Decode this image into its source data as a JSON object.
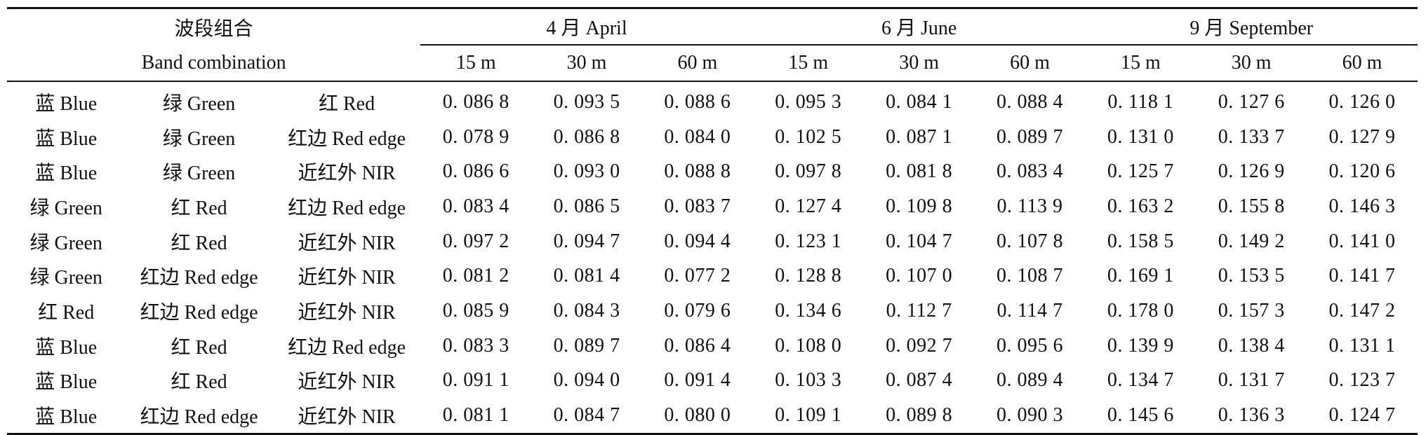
{
  "header": {
    "band_combination_cn": "波段组合",
    "band_combination_en": "Band combination",
    "months": [
      "4 月 April",
      "6 月 June",
      "9 月 September"
    ],
    "resolutions": [
      "15 m",
      "30 m",
      "60 m",
      "15 m",
      "30 m",
      "60 m",
      "15 m",
      "30 m",
      "60 m"
    ]
  },
  "rows": [
    {
      "bands": [
        "蓝 Blue",
        "绿 Green",
        "红 Red"
      ],
      "values": [
        "0. 086 8",
        "0. 093 5",
        "0. 088 6",
        "0. 095 3",
        "0. 084 1",
        "0. 088 4",
        "0. 118 1",
        "0. 127 6",
        "0. 126 0"
      ]
    },
    {
      "bands": [
        "蓝 Blue",
        "绿 Green",
        "红边 Red edge"
      ],
      "values": [
        "0. 078 9",
        "0. 086 8",
        "0. 084 0",
        "0. 102 5",
        "0. 087 1",
        "0. 089 7",
        "0. 131 0",
        "0. 133 7",
        "0. 127 9"
      ]
    },
    {
      "bands": [
        "蓝 Blue",
        "绿 Green",
        "近红外 NIR"
      ],
      "values": [
        "0. 086 6",
        "0. 093 0",
        "0. 088 8",
        "0. 097 8",
        "0. 081 8",
        "0. 083 4",
        "0. 125 7",
        "0. 126 9",
        "0. 120 6"
      ]
    },
    {
      "bands": [
        "绿 Green",
        "红 Red",
        "红边 Red edge"
      ],
      "values": [
        "0. 083 4",
        "0. 086 5",
        "0. 083 7",
        "0. 127 4",
        "0. 109 8",
        "0. 113 9",
        "0. 163 2",
        "0. 155 8",
        "0. 146 3"
      ]
    },
    {
      "bands": [
        "绿 Green",
        "红 Red",
        "近红外 NIR"
      ],
      "values": [
        "0. 097 2",
        "0. 094 7",
        "0. 094 4",
        "0. 123 1",
        "0. 104 7",
        "0. 107 8",
        "0. 158 5",
        "0. 149 2",
        "0. 141 0"
      ]
    },
    {
      "bands": [
        "绿 Green",
        "红边 Red edge",
        "近红外 NIR"
      ],
      "values": [
        "0. 081 2",
        "0. 081 4",
        "0. 077 2",
        "0. 128 8",
        "0. 107 0",
        "0. 108 7",
        "0. 169 1",
        "0. 153 5",
        "0. 141 7"
      ]
    },
    {
      "bands": [
        "红 Red",
        "红边 Red edge",
        "近红外 NIR"
      ],
      "values": [
        "0. 085 9",
        "0. 084 3",
        "0. 079 6",
        "0. 134 6",
        "0. 112 7",
        "0. 114 7",
        "0. 178 0",
        "0. 157 3",
        "0. 147 2"
      ]
    },
    {
      "bands": [
        "蓝 Blue",
        "红 Red",
        "红边 Red edge"
      ],
      "values": [
        "0. 083 3",
        "0. 089 7",
        "0. 086 4",
        "0. 108 0",
        "0. 092 7",
        "0. 095 6",
        "0. 139 9",
        "0. 138 4",
        "0. 131 1"
      ]
    },
    {
      "bands": [
        "蓝 Blue",
        "红 Red",
        "近红外 NIR"
      ],
      "values": [
        "0. 091 1",
        "0. 094 0",
        "0. 091 4",
        "0. 103 3",
        "0. 087 4",
        "0. 089 4",
        "0. 134 7",
        "0. 131 7",
        "0. 123 7"
      ]
    },
    {
      "bands": [
        "蓝 Blue",
        "红边 Red edge",
        "近红外 NIR"
      ],
      "values": [
        "0. 081 1",
        "0. 084 7",
        "0. 080 0",
        "0. 109 1",
        "0. 089 8",
        "0. 090 3",
        "0. 145 6",
        "0. 136 3",
        "0. 124 7"
      ]
    }
  ]
}
